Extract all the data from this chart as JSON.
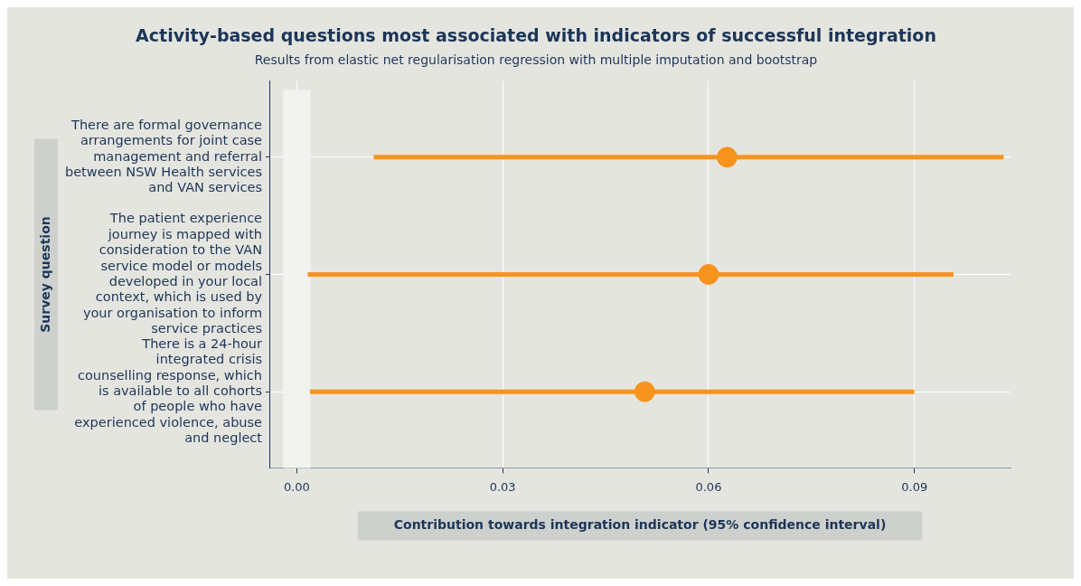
{
  "chart_data": {
    "type": "scatter",
    "orientation": "horizontal",
    "title": "Activity-based questions most associated with indicators of successful integration",
    "subtitle": "Results from elastic net regularisation regression with multiple imputation and bootstrap",
    "xlabel": "Contribution towards integration indicator (95% confidence interval)",
    "ylabel": "Survey question",
    "categories": [
      "There are formal governance arrangements for joint case management and referral between NSW Health services and VAN services",
      "The patient experience journey is mapped with consideration to the VAN service model or models developed in your local context, which is used by your organisation to inform service practices",
      "There is a 24-hour integrated crisis counselling response, which is available to all cohorts of people who have experienced violence, abuse and neglect"
    ],
    "series": [
      {
        "color": "#f7941d",
        "values": [
          0.0627,
          0.06,
          0.0507
        ],
        "errors": [
          [
            0.0112,
            0.103
          ],
          [
            0.0016,
            0.0957
          ],
          [
            0.0019,
            0.09
          ]
        ]
      }
    ],
    "xlim": [
      -0.004,
      0.104
    ],
    "xticks": [
      {
        "value": 0,
        "label": "0.00"
      },
      0.03,
      0.06,
      0.09
    ],
    "bands": [
      {
        "axis": "x",
        "from": -0.002,
        "to": 0.002,
        "color": "#f2f2ee"
      }
    ],
    "grid": true,
    "marker": "circle",
    "legend": false
  }
}
